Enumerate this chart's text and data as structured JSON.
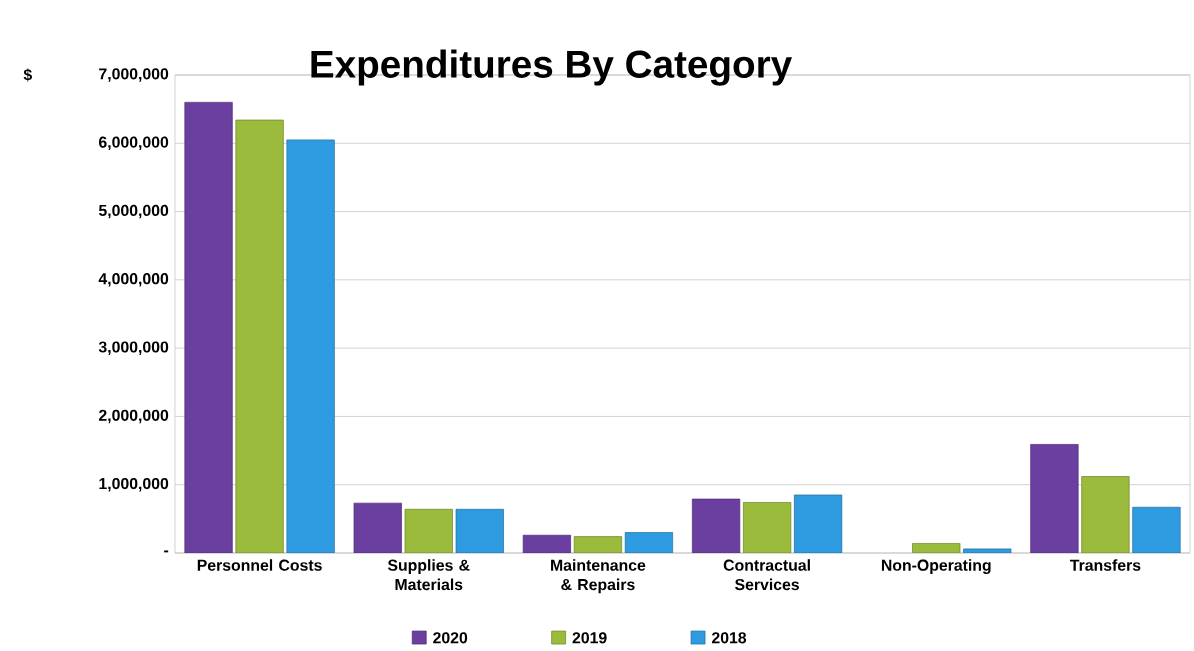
{
  "chart_data": {
    "type": "bar",
    "title": "Expenditures By Category",
    "ylabel": "$",
    "categories": [
      "Personnel Costs",
      "Supplies & Materials",
      "Maintenance & Repairs",
      "Contractual Services",
      "Non-Operating",
      "Transfers"
    ],
    "series": [
      {
        "name": "2020",
        "color": "#6a3fa0",
        "values": [
          6600000,
          730000,
          260000,
          790000,
          null,
          1590000
        ]
      },
      {
        "name": "2019",
        "color": "#9bbb3c",
        "values": [
          6340000,
          640000,
          240000,
          740000,
          140000,
          1120000
        ]
      },
      {
        "name": "2018",
        "color": "#2e9be0",
        "values": [
          6050000,
          640000,
          300000,
          850000,
          60000,
          670000
        ]
      }
    ],
    "ylim": [
      0,
      7000000
    ],
    "yticks": [
      {
        "value": 0,
        "label": "-"
      },
      {
        "value": 1000000,
        "label": "1,000,000"
      },
      {
        "value": 2000000,
        "label": "2,000,000"
      },
      {
        "value": 3000000,
        "label": "3,000,000"
      },
      {
        "value": 4000000,
        "label": "4,000,000"
      },
      {
        "value": 5000000,
        "label": "5,000,000"
      },
      {
        "value": 6000000,
        "label": "6,000,000"
      },
      {
        "value": 7000000,
        "label": "7,000,000"
      }
    ],
    "grid": "y",
    "legend": "bottom"
  }
}
